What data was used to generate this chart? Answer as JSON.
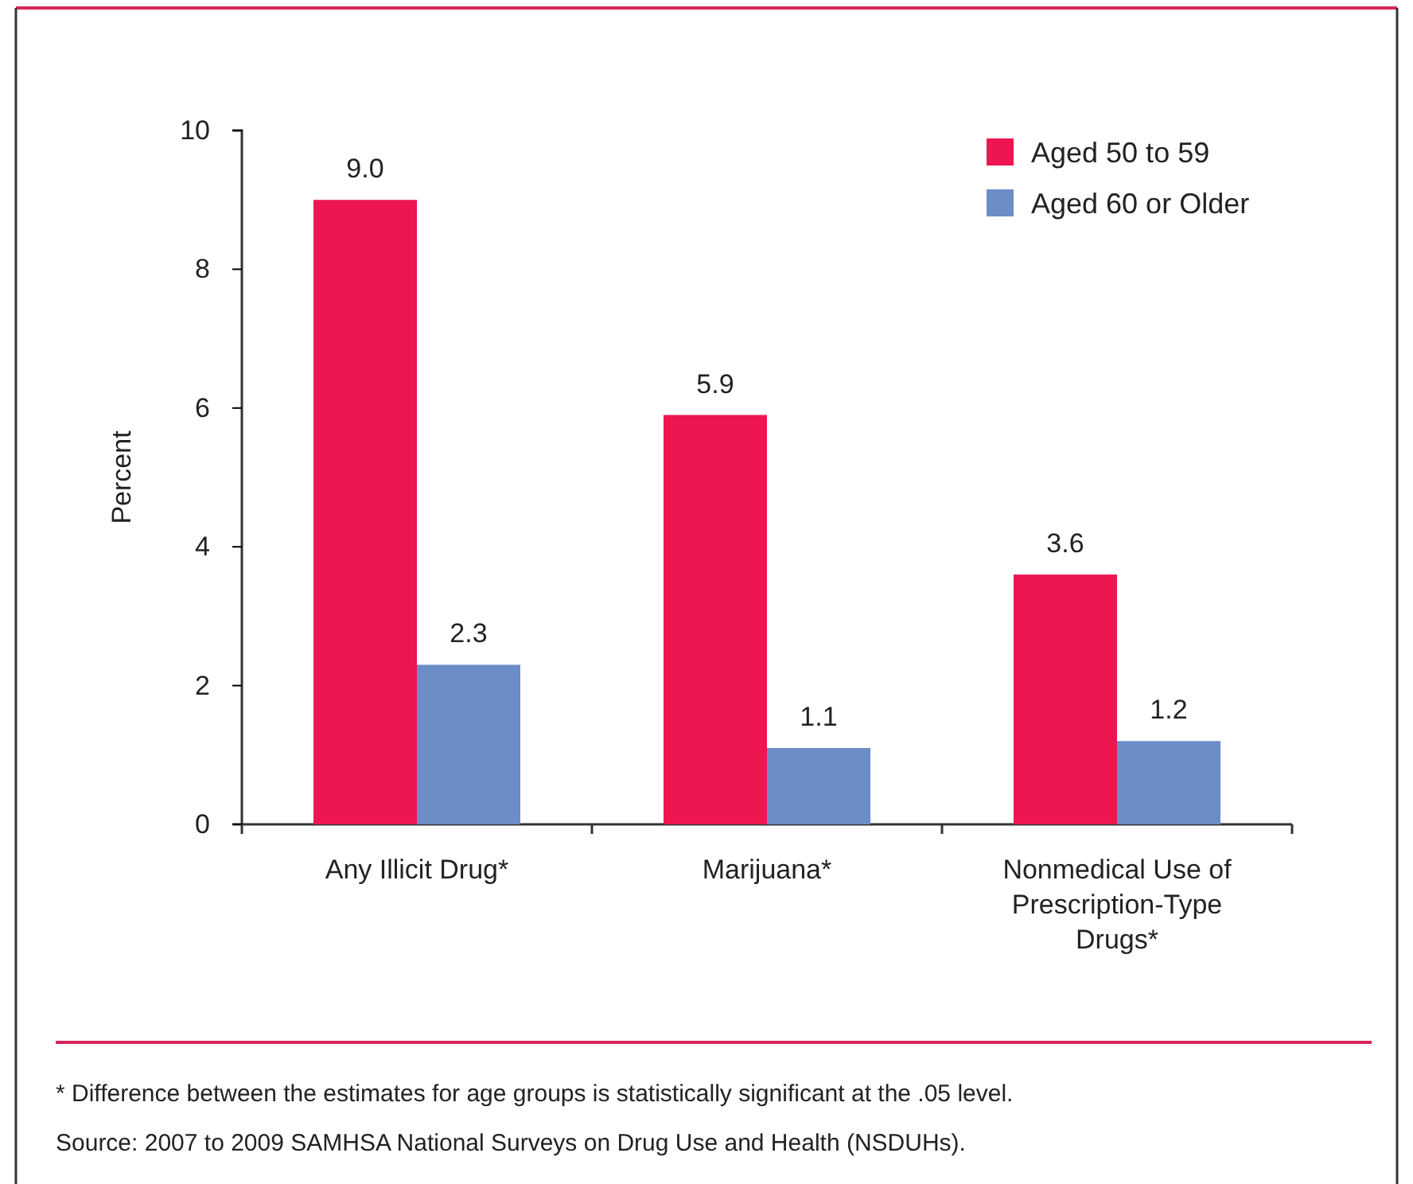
{
  "chart_data": {
    "type": "bar",
    "ylabel": "Percent",
    "categories": [
      "Any Illicit Drug*",
      "Marijuana*",
      "Nonmedical Use of Prescription-Type Drugs*"
    ],
    "series": [
      {
        "name": "Aged 50 to 59",
        "color": "#ed1651",
        "values": [
          9.0,
          5.9,
          3.6
        ],
        "value_labels": [
          "9.0",
          "5.9",
          "3.6"
        ]
      },
      {
        "name": "Aged 60 or Older",
        "color": "#6b8dc8",
        "values": [
          2.3,
          1.1,
          1.2
        ],
        "value_labels": [
          "2.3",
          "1.1",
          "1.2"
        ]
      }
    ],
    "ylim": [
      0,
      10
    ],
    "yticks": [
      0,
      2,
      4,
      6,
      8,
      10
    ],
    "grid": false,
    "legend": "top right",
    "annotations": [
      "* Difference between the estimates for age groups is statistically significant at the .05 level.",
      "Source: 2007 to 2009 SAMHSA National Surveys on Drug Use and Health (NSDUHs)."
    ]
  }
}
